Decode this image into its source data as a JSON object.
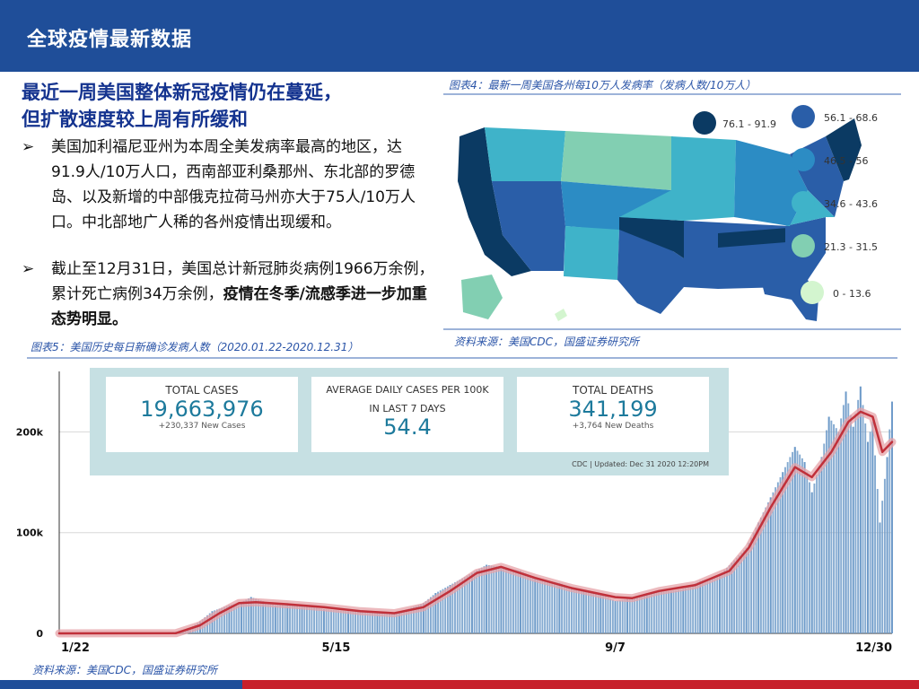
{
  "header": {
    "title": "全球疫情最新数据"
  },
  "headline": {
    "line1": "最近一周美国整体新冠疫情仍在蔓延，",
    "line2": "但扩散速度较上周有所缓和"
  },
  "bullets": [
    {
      "arrow": "➢",
      "text": "美国加利福尼亚州为本周全美发病率最高的地区，达91.9人/10万人口，西南部亚利桑那州、东北部的罗德岛、以及新增的中部俄克拉荷马州亦大于75人/10万人口。中北部地广人稀的各州疫情出现缓和。"
    },
    {
      "arrow": "➢",
      "text_normal": "截止至12月31日，美国总计新冠肺炎病例1966万余例，累计死亡病例34万余例，",
      "text_bold": "疫情在冬季/流感季进一步加重态势明显。"
    }
  ],
  "map": {
    "caption": "图表4：最新一周美国各州每10万人发病率（发病人数/10万人）",
    "source": "资料来源：美国CDC，国盛证券研究所",
    "legend": [
      {
        "label": "76.1 - 91.9",
        "color": "#0b3a63"
      },
      {
        "label": "56.1 - 68.6",
        "color": "#2a5ea8"
      },
      {
        "label": "46.5 - 56",
        "color": "#2c8cc4"
      },
      {
        "label": "34.6 - 43.6",
        "color": "#3fb3c9"
      },
      {
        "label": "21.3 - 31.5",
        "color": "#82cfb2"
      },
      {
        "label": "0 - 13.6",
        "color": "#d3f5cf"
      }
    ]
  },
  "fig5": {
    "caption": "图表5：美国历史每日新确诊发病人数（2020.01.22-2020.12.31）",
    "stats": [
      {
        "label": "TOTAL CASES",
        "label2": "",
        "value": "19,663,976",
        "sub": "+230,337 New Cases"
      },
      {
        "label": "AVERAGE DAILY CASES PER 100K",
        "label2": "IN LAST 7 DAYS",
        "value": "54.4",
        "sub": ""
      },
      {
        "label": "TOTAL DEATHS",
        "label2": "",
        "value": "341,199",
        "sub": "+3,764 New Deaths"
      }
    ],
    "stamp": "CDC | Updated: Dec 31 2020 12:20PM"
  },
  "bottom": {
    "source": "资料来源：美国CDC，国盛证券研究所"
  },
  "colors": {
    "bar": "#6f9bc9",
    "avg_line": "#c0303a",
    "avg_glow": "#e6a3a8",
    "header": "#1f4e99"
  },
  "chart_data": {
    "type": "bar",
    "title": "",
    "x_tick_labels": [
      "1/22",
      "5/15",
      "9/7",
      "12/30"
    ],
    "y_tick_labels": [
      "0",
      "100k",
      "200k"
    ],
    "ylim": [
      0,
      260000
    ],
    "series": [
      {
        "name": "",
        "type": "bar",
        "points": [
          [
            "2020-01-22",
            0
          ],
          [
            "2020-03-01",
            100
          ],
          [
            "2020-03-10",
            1500
          ],
          [
            "2020-03-15",
            4000
          ],
          [
            "2020-03-20",
            12000
          ],
          [
            "2020-03-25",
            22000
          ],
          [
            "2020-04-01",
            28000
          ],
          [
            "2020-04-06",
            31000
          ],
          [
            "2020-04-10",
            36000
          ],
          [
            "2020-04-15",
            32000
          ],
          [
            "2020-04-20",
            28000
          ],
          [
            "2020-04-25",
            30000
          ],
          [
            "2020-05-01",
            28000
          ],
          [
            "2020-05-10",
            24000
          ],
          [
            "2020-05-20",
            22000
          ],
          [
            "2020-06-01",
            20000
          ],
          [
            "2020-06-10",
            21000
          ],
          [
            "2020-06-20",
            30000
          ],
          [
            "2020-06-25",
            40000
          ],
          [
            "2020-07-01",
            48000
          ],
          [
            "2020-07-10",
            60000
          ],
          [
            "2020-07-16",
            68000
          ],
          [
            "2020-07-22",
            66000
          ],
          [
            "2020-07-30",
            62000
          ],
          [
            "2020-08-05",
            55000
          ],
          [
            "2020-08-15",
            50000
          ],
          [
            "2020-08-25",
            42000
          ],
          [
            "2020-09-01",
            40000
          ],
          [
            "2020-09-07",
            32000
          ],
          [
            "2020-09-12",
            34000
          ],
          [
            "2020-09-20",
            40000
          ],
          [
            "2020-09-30",
            42000
          ],
          [
            "2020-10-05",
            44000
          ],
          [
            "2020-10-12",
            52000
          ],
          [
            "2020-10-20",
            58000
          ],
          [
            "2020-10-25",
            70000
          ],
          [
            "2020-10-31",
            85000
          ],
          [
            "2020-11-05",
            110000
          ],
          [
            "2020-11-10",
            135000
          ],
          [
            "2020-11-15",
            160000
          ],
          [
            "2020-11-20",
            185000
          ],
          [
            "2020-11-24",
            170000
          ],
          [
            "2020-11-27",
            140000
          ],
          [
            "2020-12-01",
            175000
          ],
          [
            "2020-12-04",
            215000
          ],
          [
            "2020-12-08",
            200000
          ],
          [
            "2020-12-11",
            240000
          ],
          [
            "2020-12-14",
            205000
          ],
          [
            "2020-12-17",
            245000
          ],
          [
            "2020-12-20",
            190000
          ],
          [
            "2020-12-22",
            210000
          ],
          [
            "2020-12-25",
            110000
          ],
          [
            "2020-12-28",
            175000
          ],
          [
            "2020-12-30",
            230000
          ]
        ]
      },
      {
        "name": "",
        "type": "line",
        "points": [
          [
            "2020-01-22",
            0
          ],
          [
            "2020-03-10",
            200
          ],
          [
            "2020-03-20",
            8000
          ],
          [
            "2020-03-28",
            20000
          ],
          [
            "2020-04-05",
            30000
          ],
          [
            "2020-04-12",
            31000
          ],
          [
            "2020-04-24",
            29000
          ],
          [
            "2020-05-10",
            26000
          ],
          [
            "2020-05-25",
            22000
          ],
          [
            "2020-06-08",
            20000
          ],
          [
            "2020-06-20",
            26000
          ],
          [
            "2020-07-01",
            42000
          ],
          [
            "2020-07-12",
            60000
          ],
          [
            "2020-07-22",
            66000
          ],
          [
            "2020-08-05",
            55000
          ],
          [
            "2020-08-20",
            45000
          ],
          [
            "2020-09-07",
            36000
          ],
          [
            "2020-09-14",
            35000
          ],
          [
            "2020-09-25",
            42000
          ],
          [
            "2020-10-10",
            48000
          ],
          [
            "2020-10-24",
            62000
          ],
          [
            "2020-11-01",
            85000
          ],
          [
            "2020-11-10",
            125000
          ],
          [
            "2020-11-20",
            165000
          ],
          [
            "2020-11-27",
            155000
          ],
          [
            "2020-12-05",
            180000
          ],
          [
            "2020-12-12",
            210000
          ],
          [
            "2020-12-17",
            220000
          ],
          [
            "2020-12-22",
            215000
          ],
          [
            "2020-12-26",
            180000
          ],
          [
            "2020-12-30",
            190000
          ]
        ]
      }
    ]
  }
}
